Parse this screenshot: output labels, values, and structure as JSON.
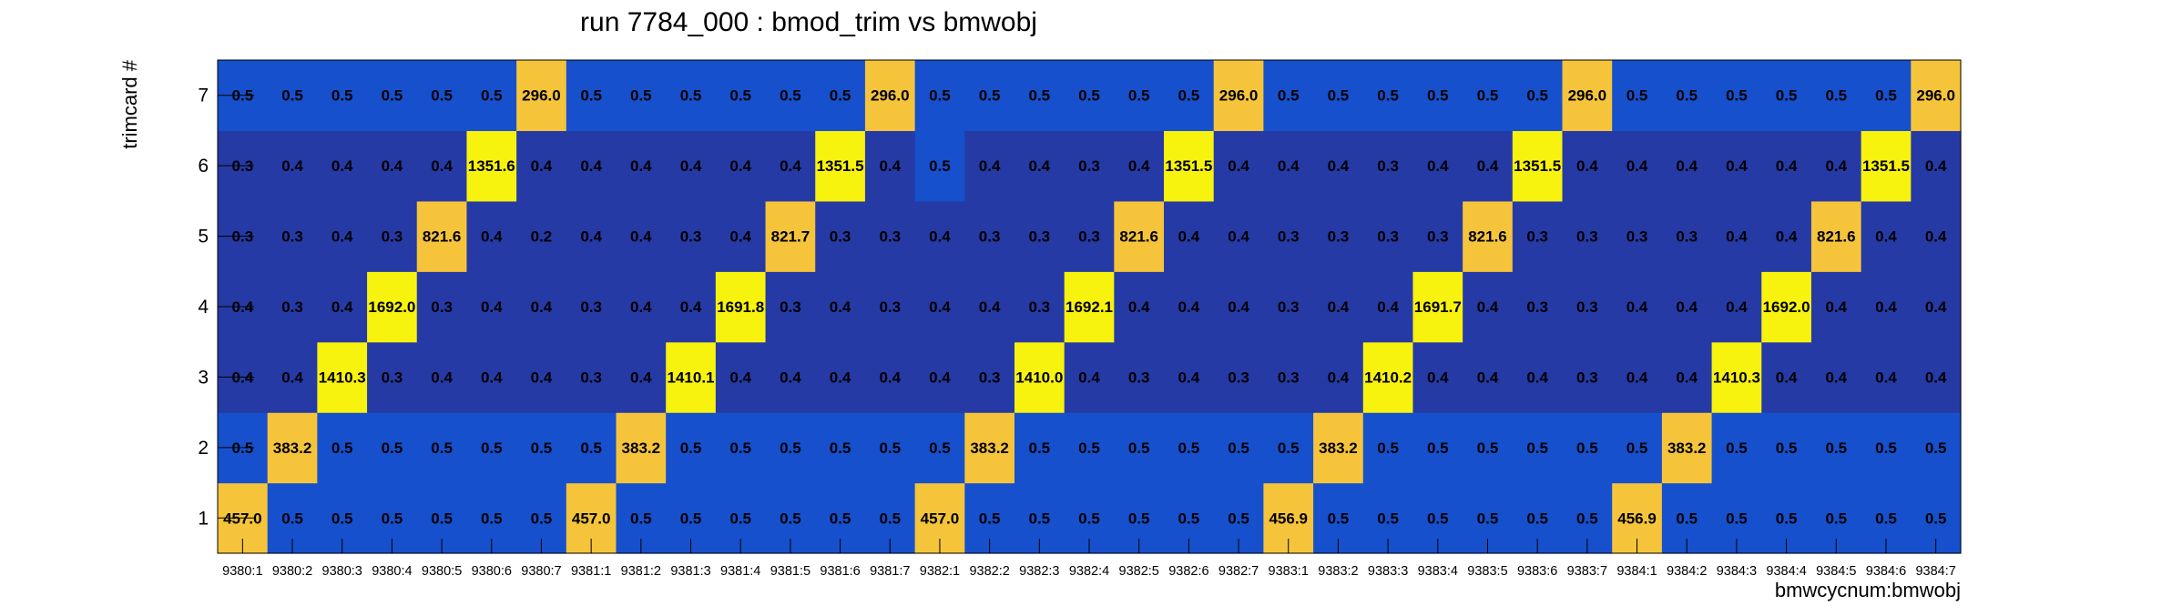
{
  "chart_data": {
    "type": "heatmap",
    "title": "run 7784_000 : bmod_trim vs bmwobj",
    "xlabel": "bmwcycnum:bmwobj",
    "ylabel": "trimcard #",
    "x_categories": [
      "9380:1",
      "9380:2",
      "9380:3",
      "9380:4",
      "9380:5",
      "9380:6",
      "9380:7",
      "9381:1",
      "9381:2",
      "9381:3",
      "9381:4",
      "9381:5",
      "9381:6",
      "9381:7",
      "9382:1",
      "9382:2",
      "9382:3",
      "9382:4",
      "9382:5",
      "9382:6",
      "9382:7",
      "9383:1",
      "9383:2",
      "9383:3",
      "9383:4",
      "9383:5",
      "9383:6",
      "9383:7",
      "9384:1",
      "9384:2",
      "9384:3",
      "9384:4",
      "9384:5",
      "9384:6",
      "9384:7"
    ],
    "y_categories": [
      "1",
      "2",
      "3",
      "4",
      "5",
      "6",
      "7"
    ],
    "values": [
      [
        "457.0",
        "0.5",
        "0.5",
        "0.5",
        "0.5",
        "0.5",
        "0.5",
        "457.0",
        "0.5",
        "0.5",
        "0.5",
        "0.5",
        "0.5",
        "0.5",
        "457.0",
        "0.5",
        "0.5",
        "0.5",
        "0.5",
        "0.5",
        "0.5",
        "456.9",
        "0.5",
        "0.5",
        "0.5",
        "0.5",
        "0.5",
        "0.5",
        "456.9",
        "0.5",
        "0.5",
        "0.5",
        "0.5",
        "0.5",
        "0.5"
      ],
      [
        "0.5",
        "383.2",
        "0.5",
        "0.5",
        "0.5",
        "0.5",
        "0.5",
        "0.5",
        "383.2",
        "0.5",
        "0.5",
        "0.5",
        "0.5",
        "0.5",
        "0.5",
        "383.2",
        "0.5",
        "0.5",
        "0.5",
        "0.5",
        "0.5",
        "0.5",
        "383.2",
        "0.5",
        "0.5",
        "0.5",
        "0.5",
        "0.5",
        "0.5",
        "383.2",
        "0.5",
        "0.5",
        "0.5",
        "0.5",
        "0.5"
      ],
      [
        "0.4",
        "0.4",
        "1410.3",
        "0.3",
        "0.4",
        "0.4",
        "0.4",
        "0.3",
        "0.4",
        "1410.1",
        "0.4",
        "0.4",
        "0.4",
        "0.4",
        "0.4",
        "0.3",
        "1410.0",
        "0.4",
        "0.3",
        "0.4",
        "0.3",
        "0.3",
        "0.4",
        "1410.2",
        "0.4",
        "0.4",
        "0.4",
        "0.3",
        "0.4",
        "0.4",
        "1410.3",
        "0.4",
        "0.4",
        "0.4",
        "0.4"
      ],
      [
        "0.4",
        "0.3",
        "0.4",
        "1692.0",
        "0.3",
        "0.4",
        "0.4",
        "0.3",
        "0.4",
        "0.4",
        "1691.8",
        "0.3",
        "0.4",
        "0.3",
        "0.4",
        "0.4",
        "0.3",
        "1692.1",
        "0.4",
        "0.4",
        "0.4",
        "0.3",
        "0.4",
        "0.4",
        "1691.7",
        "0.4",
        "0.3",
        "0.3",
        "0.4",
        "0.4",
        "0.4",
        "1692.0",
        "0.4",
        "0.4",
        "0.4"
      ],
      [
        "0.3",
        "0.3",
        "0.4",
        "0.3",
        "821.6",
        "0.4",
        "0.2",
        "0.4",
        "0.4",
        "0.3",
        "0.4",
        "821.7",
        "0.3",
        "0.3",
        "0.4",
        "0.3",
        "0.3",
        "0.3",
        "821.6",
        "0.4",
        "0.4",
        "0.3",
        "0.3",
        "0.3",
        "0.3",
        "821.6",
        "0.3",
        "0.3",
        "0.3",
        "0.3",
        "0.4",
        "0.4",
        "821.6",
        "0.4",
        "0.4"
      ],
      [
        "0.3",
        "0.4",
        "0.4",
        "0.4",
        "0.4",
        "1351.6",
        "0.4",
        "0.4",
        "0.4",
        "0.4",
        "0.4",
        "0.4",
        "1351.5",
        "0.4",
        "0.5",
        "0.4",
        "0.4",
        "0.3",
        "0.4",
        "1351.5",
        "0.4",
        "0.4",
        "0.4",
        "0.3",
        "0.4",
        "0.4",
        "1351.5",
        "0.4",
        "0.4",
        "0.4",
        "0.4",
        "0.4",
        "0.4",
        "1351.5",
        "0.4"
      ],
      [
        "0.5",
        "0.5",
        "0.5",
        "0.5",
        "0.5",
        "0.5",
        "296.0",
        "0.5",
        "0.5",
        "0.5",
        "0.5",
        "0.5",
        "0.5",
        "296.0",
        "0.5",
        "0.5",
        "0.5",
        "0.5",
        "0.5",
        "0.5",
        "296.0",
        "0.5",
        "0.5",
        "0.5",
        "0.5",
        "0.5",
        "0.5",
        "296.0",
        "0.5",
        "0.5",
        "0.5",
        "0.5",
        "0.5",
        "0.5",
        "296.0"
      ]
    ],
    "colors": {
      "very_low": "#263aa5",
      "low": "#1650cc",
      "mid": "#f5c43a",
      "high": "#f8f20f",
      "frame": "#000000"
    },
    "grid": false,
    "legend": "none"
  }
}
